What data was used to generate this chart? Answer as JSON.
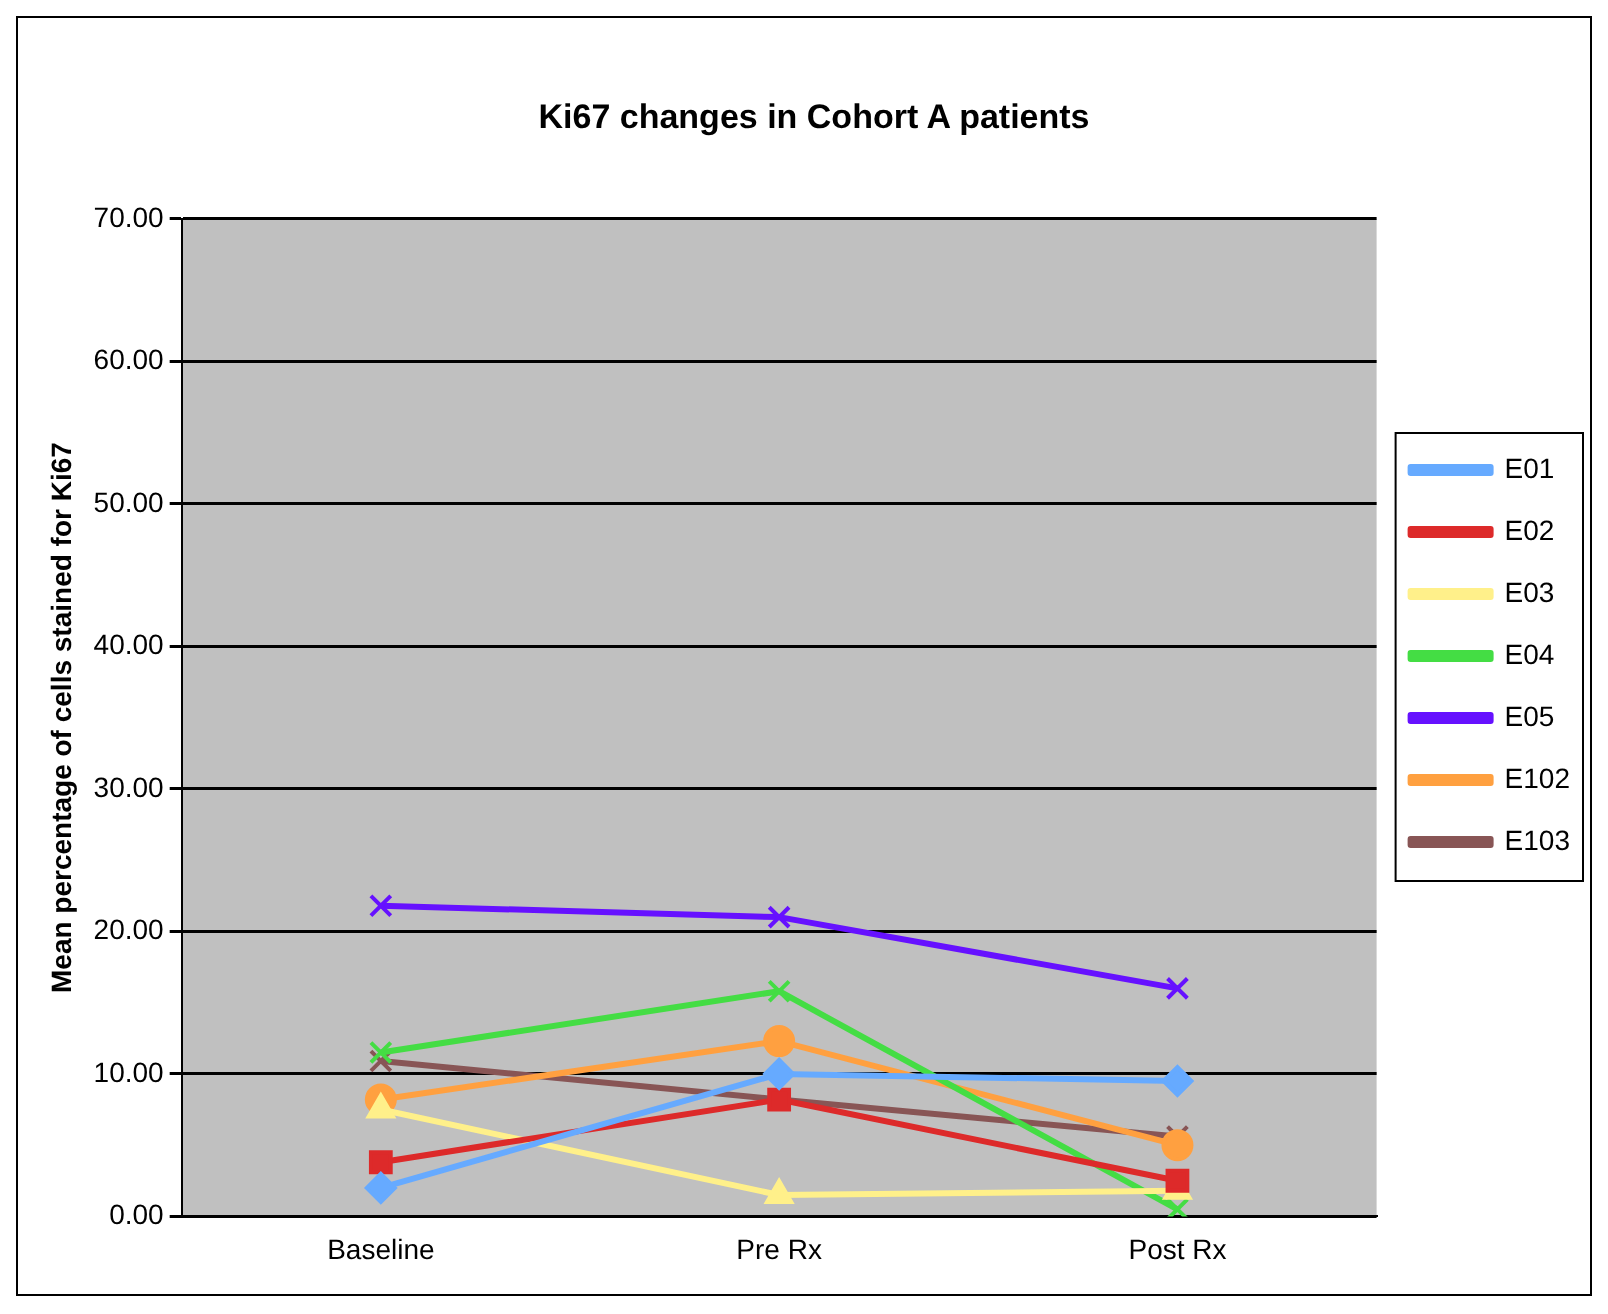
{
  "chart_data": {
    "type": "line",
    "title": "Ki67 changes in Cohort A patients",
    "ylabel": "Mean percentage of cells stained for Ki67",
    "categories": [
      "Baseline",
      "Pre Rx",
      "Post Rx"
    ],
    "ylim": [
      0,
      70
    ],
    "yticks": [
      {
        "value": 0,
        "label": "0.00"
      },
      {
        "value": 10,
        "label": "10.00"
      },
      {
        "value": 20,
        "label": "20.00"
      },
      {
        "value": 30,
        "label": "30.00"
      },
      {
        "value": 40,
        "label": "40.00"
      },
      {
        "value": 50,
        "label": "50.00"
      },
      {
        "value": 60,
        "label": "60.00"
      },
      {
        "value": 70,
        "label": "70.00"
      }
    ],
    "grid": "y",
    "legend": "right",
    "series": [
      {
        "name": "E01",
        "color": "#66aaff",
        "marker": "diamond",
        "values": [
          2,
          10,
          9.5
        ]
      },
      {
        "name": "E02",
        "color": "#dd2a2a",
        "marker": "square",
        "values": [
          3.8,
          8.2,
          2.5
        ]
      },
      {
        "name": "E03",
        "color": "#fff08a",
        "marker": "triangle",
        "values": [
          7.5,
          1.5,
          1.8
        ]
      },
      {
        "name": "E04",
        "color": "#44dd44",
        "marker": "cross",
        "values": [
          11.5,
          15.8,
          0.5
        ]
      },
      {
        "name": "E05",
        "color": "#6611ff",
        "marker": "cross",
        "values": [
          21.8,
          21,
          16
        ]
      },
      {
        "name": "E102",
        "color": "#ffa040",
        "marker": "circle",
        "values": [
          8.2,
          12.3,
          5
        ]
      },
      {
        "name": "E103",
        "color": "#885555",
        "marker": "cross",
        "values": [
          10.9,
          8.2,
          5.6
        ]
      }
    ]
  }
}
